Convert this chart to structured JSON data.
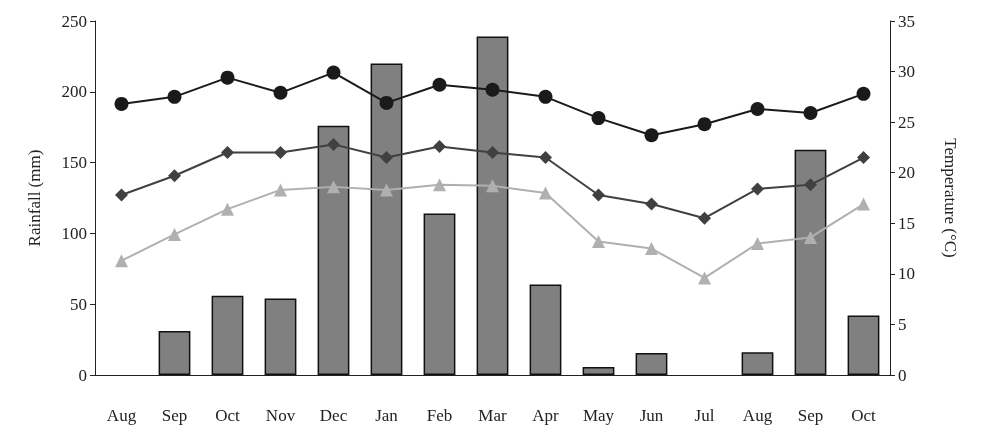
{
  "chart_data": {
    "type": "bar",
    "ylabel": "Rainfall (mm)",
    "y2label": "Temperature (°C)",
    "categories": [
      "Aug",
      "Sep",
      "Oct",
      "Nov",
      "Dec",
      "Jan",
      "Feb",
      "Mar",
      "Apr",
      "May",
      "Jun",
      "Jul",
      "Aug",
      "Sep",
      "Oct"
    ],
    "ylim": [
      0,
      250
    ],
    "yticks": [
      0,
      50,
      100,
      150,
      200,
      250
    ],
    "y2lim": [
      0,
      35
    ],
    "y2ticks": [
      0,
      5,
      10,
      15,
      20,
      25,
      30,
      35
    ],
    "grid": false,
    "series": [
      {
        "color": "#808080",
        "values": [
          null,
          31,
          56,
          54,
          176,
          220,
          114,
          239,
          64,
          5.6,
          15.5,
          null,
          16,
          159,
          42
        ]
      },
      {
        "type": "line",
        "axis": "y2",
        "marker": "circle",
        "color": "#1a1a1a",
        "values": [
          26.8,
          27.5,
          29.4,
          27.9,
          29.9,
          26.9,
          28.7,
          28.2,
          27.5,
          25.4,
          23.7,
          24.8,
          26.3,
          25.9,
          27.8
        ]
      },
      {
        "type": "line",
        "axis": "y2",
        "marker": "diamond",
        "color": "#404040",
        "values": [
          17.8,
          19.7,
          22.0,
          22.0,
          22.8,
          21.5,
          22.6,
          22.0,
          21.5,
          17.8,
          16.9,
          15.5,
          18.4,
          18.8,
          21.5
        ]
      },
      {
        "type": "line",
        "axis": "y2",
        "marker": "triangle",
        "color": "#b0b0b0",
        "values": [
          11.3,
          13.9,
          16.4,
          18.3,
          18.6,
          18.3,
          18.8,
          18.7,
          18.0,
          13.2,
          12.5,
          9.6,
          13.0,
          13.6,
          16.9
        ]
      }
    ]
  }
}
